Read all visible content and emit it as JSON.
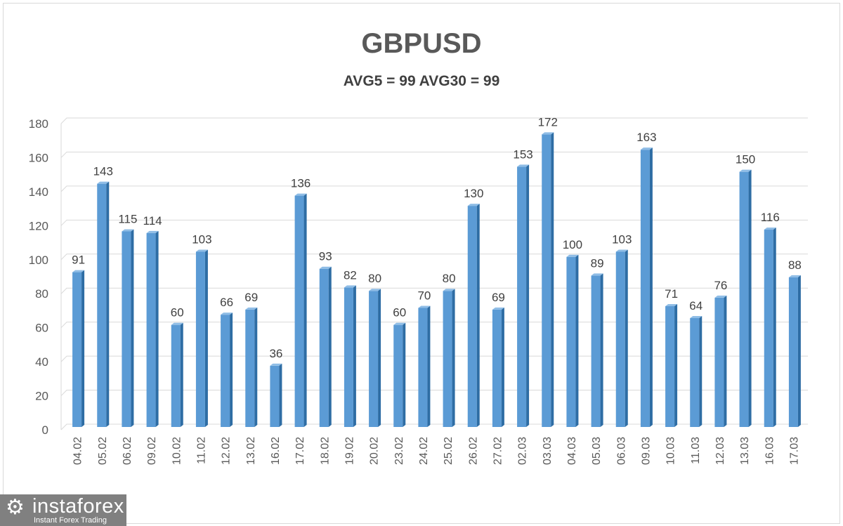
{
  "chart_data": {
    "type": "bar",
    "title": "GBPUSD",
    "subtitle": "AVG5 = 99 AVG30 = 99",
    "xlabel": "",
    "ylabel": "",
    "ylim": [
      0,
      180
    ],
    "yticks": [
      0,
      20,
      40,
      60,
      80,
      100,
      120,
      140,
      160,
      180
    ],
    "grid": true,
    "bar_color": "#5b9bd5",
    "categories": [
      "04.02",
      "05.02",
      "06.02",
      "09.02",
      "10.02",
      "11.02",
      "12.02",
      "13.02",
      "16.02",
      "17.02",
      "18.02",
      "19.02",
      "20.02",
      "23.02",
      "24.02",
      "25.02",
      "26.02",
      "27.02",
      "02.03",
      "03.03",
      "04.03",
      "05.03",
      "06.03",
      "09.03",
      "10.03",
      "11.03",
      "12.03",
      "13.03",
      "16.03",
      "17.03"
    ],
    "values": [
      91,
      143,
      115,
      114,
      60,
      103,
      66,
      69,
      36,
      136,
      93,
      82,
      80,
      60,
      70,
      80,
      130,
      69,
      153,
      172,
      100,
      89,
      103,
      163,
      71,
      64,
      76,
      150,
      116,
      88
    ]
  },
  "logo": {
    "name": "instaforex",
    "tagline": "Instant Forex Trading",
    "icon": "gear-icon"
  }
}
